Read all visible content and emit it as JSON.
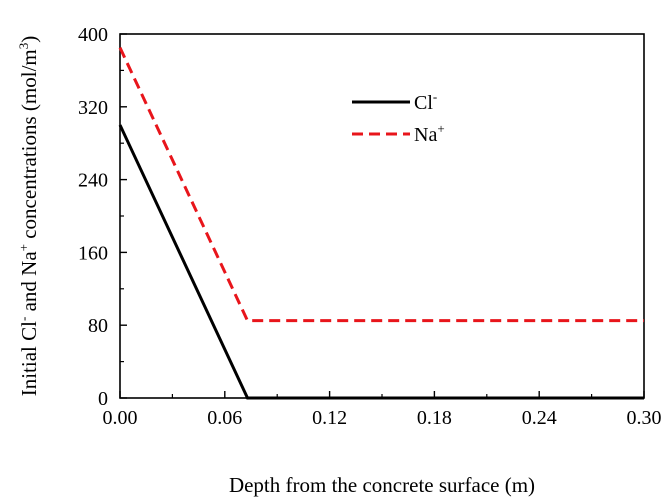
{
  "chart_data": {
    "type": "line",
    "xlabel": "Depth from the concrete surface (m)",
    "ylabel": {
      "p1": "Initial Cl",
      "sup1": "-",
      "p2": " and Na",
      "sup2": "+",
      "p3": " concentrations (mol/m",
      "sup3": "3",
      "p4": ")"
    },
    "xlim": [
      0,
      0.3
    ],
    "ylim": [
      0,
      400
    ],
    "xticks": [
      0.0,
      0.06,
      0.12,
      0.18,
      0.24,
      0.3
    ],
    "xtick_labels": [
      "0.00",
      "0.06",
      "0.12",
      "0.18",
      "0.24",
      "0.30"
    ],
    "yticks": [
      0,
      80,
      160,
      240,
      320,
      400
    ],
    "ytick_labels": [
      "0",
      "80",
      "160",
      "240",
      "320",
      "400"
    ],
    "grid": false,
    "legend_position": "top-center",
    "series": [
      {
        "name": "Cl",
        "name_sup": "-",
        "color": "#000000",
        "style": "solid",
        "x": [
          0.0,
          0.073,
          0.3
        ],
        "y": [
          300,
          0,
          0
        ]
      },
      {
        "name": "Na",
        "name_sup": "+",
        "color": "#e8151b",
        "style": "dashed",
        "x": [
          0.0,
          0.073,
          0.3
        ],
        "y": [
          385,
          85,
          85
        ]
      }
    ]
  }
}
